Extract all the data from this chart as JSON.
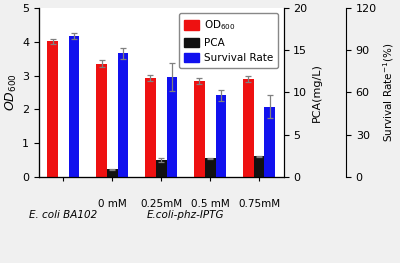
{
  "groups": [
    "E. coli BA102",
    "0 mM",
    "0.25mM",
    "0.5 mM",
    "0.75mM"
  ],
  "od600": [
    4.02,
    3.35,
    2.92,
    2.83,
    2.9
  ],
  "od600_err": [
    0.07,
    0.1,
    0.09,
    0.09,
    0.09
  ],
  "pca": [
    null,
    0.88,
    1.95,
    2.18,
    2.42
  ],
  "pca_err": [
    null,
    0.07,
    0.22,
    0.08,
    0.1
  ],
  "survival_pct": [
    100,
    88,
    71,
    58,
    50
  ],
  "survival_err_pct": [
    2.0,
    4.0,
    10.0,
    4.0,
    8.0
  ],
  "od600_color": "#EE1111",
  "pca_color": "#111111",
  "survival_color": "#1111EE",
  "bar_width": 0.22,
  "ylim_left": [
    0,
    5
  ],
  "ylim_pca": [
    0,
    20
  ],
  "ylim_survival": [
    0,
    120
  ],
  "yticks_left": [
    0,
    1,
    2,
    3,
    4,
    5
  ],
  "yticks_pca": [
    0,
    5,
    10,
    15,
    20
  ],
  "yticks_survival": [
    0,
    30,
    60,
    90,
    120
  ],
  "ylabel_left": "OD$_{600}$",
  "ylabel_pca": "PCA(mg/L)",
  "ylabel_survival": "Survival Rate$^{-1}$(%)",
  "xlabel_iptg": "E.coli-phz-IPTG",
  "xlabel_ba": "E. coli BA102",
  "fig_bg": "#F0F0F0",
  "plot_bg": "#FFFFFF"
}
